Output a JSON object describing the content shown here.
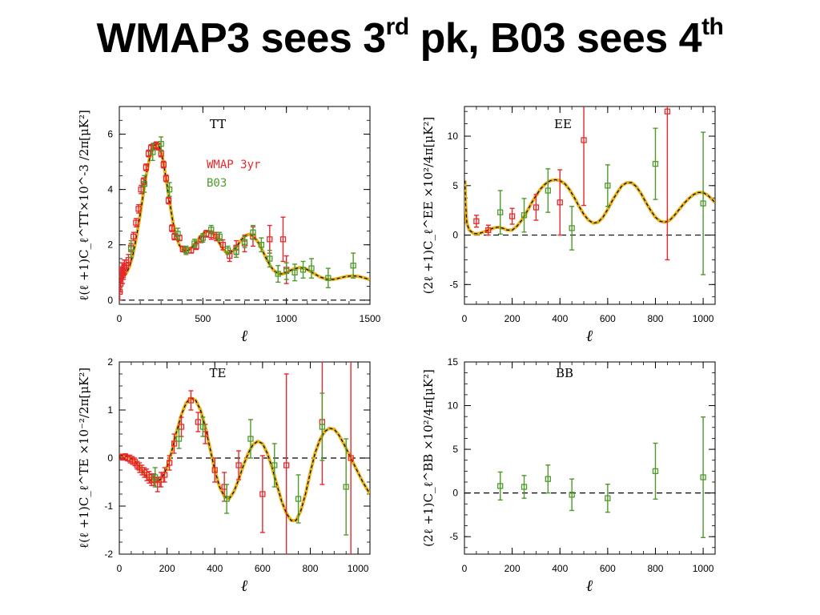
{
  "slide": {
    "title_a": "WMAP3 sees 3",
    "title_sup_a": "rd",
    "title_b": " pk, B03 sees 4",
    "title_sup_b": "th"
  },
  "colors": {
    "wmap": "#e8282b",
    "b03": "#4e9a2a",
    "model_fill": "#e8b21a",
    "model_line": "#000000"
  },
  "chart_data": [
    {
      "id": "tt",
      "type": "scatter",
      "panel_label": "TT",
      "xlabel": "ℓ",
      "ylabel": "ℓ(ℓ +1)C_ℓ^TT×10^-3 /2π[μK²]",
      "xlim": [
        0,
        1500
      ],
      "ylim": [
        -0.15,
        7.0
      ],
      "xticks": [
        0,
        500,
        1000,
        1500
      ],
      "yticks": [
        0,
        2,
        4,
        6
      ],
      "zero_line": true,
      "legend": [
        "WMAP 3yr",
        "B03"
      ],
      "model": {
        "x": [
          2,
          10,
          20,
          40,
          60,
          80,
          100,
          120,
          140,
          160,
          180,
          200,
          220,
          240,
          260,
          280,
          300,
          320,
          340,
          360,
          380,
          400,
          420,
          440,
          460,
          480,
          500,
          520,
          540,
          560,
          580,
          600,
          620,
          640,
          660,
          680,
          700,
          720,
          740,
          760,
          780,
          800,
          820,
          840,
          860,
          880,
          900,
          920,
          940,
          960,
          980,
          1000,
          1040,
          1080,
          1120,
          1160,
          1200,
          1240,
          1280,
          1320,
          1360,
          1400,
          1440,
          1480,
          1500
        ],
        "y": [
          0.9,
          0.85,
          0.85,
          0.95,
          1.2,
          1.6,
          2.2,
          2.9,
          3.7,
          4.5,
          5.1,
          5.5,
          5.65,
          5.55,
          5.1,
          4.4,
          3.6,
          2.85,
          2.3,
          1.98,
          1.82,
          1.78,
          1.82,
          1.95,
          2.1,
          2.25,
          2.4,
          2.48,
          2.48,
          2.4,
          2.25,
          2.05,
          1.85,
          1.72,
          1.7,
          1.78,
          1.92,
          2.1,
          2.25,
          2.35,
          2.38,
          2.32,
          2.18,
          2.0,
          1.75,
          1.5,
          1.28,
          1.1,
          1.0,
          0.95,
          0.95,
          1.0,
          1.12,
          1.18,
          1.12,
          0.98,
          0.84,
          0.76,
          0.75,
          0.8,
          0.86,
          0.88,
          0.85,
          0.78,
          0.74
        ]
      },
      "series": [
        {
          "name": "WMAP 3yr",
          "color": "wmap",
          "points": [
            [
              3,
              0.3,
              0.3
            ],
            [
              5,
              0.8,
              0.35
            ],
            [
              8,
              0.6,
              0.3
            ],
            [
              12,
              0.9,
              0.3
            ],
            [
              16,
              1.05,
              0.3
            ],
            [
              20,
              0.9,
              0.3
            ],
            [
              25,
              1.0,
              0.25
            ],
            [
              30,
              1.2,
              0.25
            ],
            [
              40,
              1.25,
              0.2
            ],
            [
              55,
              1.45,
              0.2
            ],
            [
              70,
              1.9,
              0.15
            ],
            [
              85,
              2.3,
              0.15
            ],
            [
              100,
              2.8,
              0.15
            ],
            [
              115,
              3.3,
              0.15
            ],
            [
              130,
              4.0,
              0.15
            ],
            [
              145,
              4.3,
              0.12
            ],
            [
              160,
              4.8,
              0.12
            ],
            [
              175,
              5.3,
              0.12
            ],
            [
              190,
              5.5,
              0.12
            ],
            [
              205,
              5.55,
              0.12
            ],
            [
              220,
              5.6,
              0.12
            ],
            [
              235,
              5.55,
              0.12
            ],
            [
              250,
              5.3,
              0.12
            ],
            [
              265,
              4.9,
              0.12
            ],
            [
              280,
              4.4,
              0.12
            ],
            [
              295,
              3.6,
              0.12
            ],
            [
              315,
              2.6,
              0.12
            ],
            [
              330,
              2.3,
              0.12
            ],
            [
              360,
              2.25,
              0.1
            ],
            [
              380,
              1.85,
              0.1
            ],
            [
              400,
              1.8,
              0.1
            ],
            [
              430,
              1.8,
              0.1
            ],
            [
              460,
              1.95,
              0.12
            ],
            [
              490,
              2.2,
              0.12
            ],
            [
              520,
              2.4,
              0.12
            ],
            [
              550,
              2.35,
              0.15
            ],
            [
              580,
              2.3,
              0.15
            ],
            [
              620,
              2.0,
              0.18
            ],
            [
              660,
              1.6,
              0.2
            ],
            [
              700,
              1.9,
              0.25
            ],
            [
              750,
              2.05,
              0.3
            ],
            [
              800,
              2.3,
              0.35
            ],
            [
              900,
              2.2,
              0.5
            ],
            [
              980,
              2.2,
              0.8
            ],
            [
              1000,
              1.1,
              0.5
            ]
          ]
        },
        {
          "name": "B03",
          "color": "b03",
          "points": [
            [
              70,
              1.85,
              0.3
            ],
            [
              150,
              4.2,
              0.3
            ],
            [
              200,
              5.35,
              0.3
            ],
            [
              250,
              5.65,
              0.25
            ],
            [
              300,
              4.0,
              0.25
            ],
            [
              350,
              2.4,
              0.2
            ],
            [
              400,
              1.8,
              0.15
            ],
            [
              450,
              2.05,
              0.15
            ],
            [
              500,
              2.25,
              0.15
            ],
            [
              550,
              2.55,
              0.15
            ],
            [
              600,
              2.3,
              0.15
            ],
            [
              650,
              1.8,
              0.15
            ],
            [
              700,
              1.75,
              0.2
            ],
            [
              750,
              2.1,
              0.2
            ],
            [
              800,
              2.45,
              0.25
            ],
            [
              850,
              2.0,
              0.25
            ],
            [
              900,
              1.5,
              0.3
            ],
            [
              950,
              0.95,
              0.3
            ],
            [
              1000,
              1.05,
              0.3
            ],
            [
              1050,
              1.0,
              0.3
            ],
            [
              1100,
              1.1,
              0.3
            ],
            [
              1150,
              1.15,
              0.35
            ],
            [
              1250,
              0.8,
              0.35
            ],
            [
              1400,
              1.25,
              0.45
            ]
          ]
        }
      ]
    },
    {
      "id": "ee",
      "type": "scatter",
      "panel_label": "EE",
      "xlabel": "ℓ",
      "ylabel": "(2ℓ +1)C_ℓ^EE ×10²/4π[μK²]",
      "xlim": [
        0,
        1050
      ],
      "ylim": [
        -7,
        13
      ],
      "xticks": [
        0,
        200,
        400,
        600,
        800,
        1000
      ],
      "yticks": [
        -5,
        0,
        5,
        10
      ],
      "zero_line": true,
      "model": {
        "x": [
          2,
          5,
          10,
          20,
          40,
          60,
          80,
          100,
          120,
          140,
          160,
          180,
          200,
          220,
          240,
          260,
          280,
          300,
          320,
          340,
          360,
          380,
          400,
          420,
          440,
          460,
          480,
          500,
          520,
          540,
          560,
          580,
          600,
          620,
          640,
          660,
          680,
          700,
          720,
          740,
          760,
          780,
          800,
          820,
          840,
          860,
          880,
          900,
          920,
          940,
          960,
          980,
          1000,
          1020,
          1050
        ],
        "y": [
          5.5,
          3.0,
          1.2,
          0.5,
          0.15,
          0.15,
          0.3,
          0.5,
          0.7,
          0.8,
          0.7,
          0.5,
          0.5,
          0.9,
          1.5,
          2.3,
          3.2,
          4.0,
          4.7,
          5.2,
          5.5,
          5.6,
          5.5,
          5.2,
          4.6,
          3.8,
          2.9,
          2.1,
          1.5,
          1.2,
          1.3,
          1.8,
          2.6,
          3.5,
          4.3,
          5.0,
          5.3,
          5.3,
          4.9,
          4.2,
          3.3,
          2.5,
          1.8,
          1.4,
          1.3,
          1.5,
          2.0,
          2.6,
          3.2,
          3.7,
          4.1,
          4.3,
          4.3,
          4.0,
          3.3
        ]
      },
      "series": [
        {
          "name": "WMAP 3yr",
          "color": "wmap",
          "points": [
            [
              50,
              1.4,
              0.6
            ],
            [
              100,
              0.5,
              0.5
            ],
            [
              200,
              1.9,
              0.8
            ],
            [
              300,
              2.8,
              1.3
            ],
            [
              400,
              3.3,
              3.3
            ],
            [
              500,
              9.6,
              6.6
            ],
            [
              850,
              12.5,
              15
            ]
          ]
        },
        {
          "name": "B03",
          "color": "b03",
          "points": [
            [
              150,
              2.3,
              2.2
            ],
            [
              250,
              2.0,
              1.7
            ],
            [
              350,
              4.5,
              2.2
            ],
            [
              450,
              0.7,
              2.2
            ],
            [
              600,
              5.0,
              2.1
            ],
            [
              800,
              7.2,
              3.6
            ],
            [
              1000,
              3.2,
              7.2
            ]
          ]
        }
      ]
    },
    {
      "id": "te",
      "type": "scatter",
      "panel_label": "TE",
      "xlabel": "ℓ",
      "ylabel": "ℓ(ℓ +1)C_ℓ^TE ×10⁻²/2π[μK²]",
      "xlim": [
        0,
        1050
      ],
      "ylim": [
        -2,
        2
      ],
      "xticks": [
        0,
        200,
        400,
        600,
        800,
        1000
      ],
      "yticks": [
        -2,
        -1,
        0,
        1,
        2
      ],
      "zero_line": true,
      "model": {
        "x": [
          2,
          20,
          40,
          60,
          80,
          100,
          120,
          140,
          160,
          180,
          200,
          220,
          240,
          260,
          280,
          300,
          320,
          340,
          360,
          380,
          400,
          420,
          440,
          460,
          480,
          500,
          520,
          540,
          560,
          580,
          600,
          620,
          640,
          660,
          680,
          700,
          720,
          740,
          760,
          780,
          800,
          820,
          840,
          860,
          880,
          900,
          920,
          940,
          960,
          980,
          1000,
          1020,
          1050
        ],
        "y": [
          0.05,
          0.05,
          0.02,
          -0.05,
          -0.15,
          -0.3,
          -0.42,
          -0.5,
          -0.5,
          -0.4,
          -0.2,
          0.15,
          0.55,
          0.9,
          1.15,
          1.25,
          1.2,
          1.0,
          0.65,
          0.2,
          -0.25,
          -0.6,
          -0.8,
          -0.85,
          -0.7,
          -0.45,
          -0.15,
          0.1,
          0.28,
          0.35,
          0.3,
          0.1,
          -0.2,
          -0.55,
          -0.9,
          -1.15,
          -1.3,
          -1.3,
          -1.1,
          -0.75,
          -0.3,
          0.1,
          0.38,
          0.55,
          0.62,
          0.6,
          0.48,
          0.3,
          0.1,
          -0.1,
          -0.3,
          -0.5,
          -0.75
        ]
      },
      "series": [
        {
          "name": "WMAP 3yr",
          "color": "wmap",
          "points": [
            [
              5,
              0.02,
              0.06
            ],
            [
              15,
              0.02,
              0.06
            ],
            [
              25,
              0.03,
              0.06
            ],
            [
              35,
              0.0,
              0.06
            ],
            [
              45,
              -0.02,
              0.08
            ],
            [
              55,
              -0.05,
              0.08
            ],
            [
              65,
              -0.08,
              0.08
            ],
            [
              75,
              -0.15,
              0.08
            ],
            [
              85,
              -0.2,
              0.1
            ],
            [
              95,
              -0.25,
              0.1
            ],
            [
              105,
              -0.3,
              0.1
            ],
            [
              115,
              -0.35,
              0.12
            ],
            [
              125,
              -0.4,
              0.12
            ],
            [
              135,
              -0.45,
              0.12
            ],
            [
              145,
              -0.45,
              0.12
            ],
            [
              160,
              -0.55,
              0.15
            ],
            [
              175,
              -0.45,
              0.15
            ],
            [
              190,
              -0.35,
              0.15
            ],
            [
              210,
              -0.1,
              0.15
            ],
            [
              230,
              0.3,
              0.2
            ],
            [
              260,
              0.65,
              0.2
            ],
            [
              300,
              1.2,
              0.2
            ],
            [
              330,
              0.75,
              0.2
            ],
            [
              360,
              0.5,
              0.2
            ],
            [
              400,
              -0.25,
              0.25
            ],
            [
              440,
              -0.6,
              0.3
            ],
            [
              500,
              -0.15,
              0.3
            ],
            [
              600,
              -0.75,
              0.8
            ],
            [
              700,
              -0.15,
              1.9
            ],
            [
              850,
              0.75,
              1.3
            ],
            [
              970,
              0.0,
              2.5
            ]
          ]
        },
        {
          "name": "B03",
          "color": "b03",
          "points": [
            [
              150,
              -0.4,
              0.2
            ],
            [
              250,
              0.4,
              0.2
            ],
            [
              350,
              0.65,
              0.2
            ],
            [
              450,
              -0.85,
              0.3
            ],
            [
              550,
              0.4,
              0.4
            ],
            [
              650,
              -0.15,
              0.45
            ],
            [
              750,
              -0.85,
              0.5
            ],
            [
              850,
              0.65,
              0.7
            ],
            [
              950,
              -0.6,
              1.0
            ]
          ]
        }
      ]
    },
    {
      "id": "bb",
      "type": "scatter",
      "panel_label": "BB",
      "xlabel": "ℓ",
      "ylabel": "(2ℓ +1)C_ℓ^BB ×10²/4π[μK²]",
      "xlim": [
        0,
        1050
      ],
      "ylim": [
        -7,
        15
      ],
      "xticks": [
        0,
        200,
        400,
        600,
        800,
        1000
      ],
      "yticks": [
        -5,
        0,
        5,
        10,
        15
      ],
      "zero_line": true,
      "series": [
        {
          "name": "B03",
          "color": "b03",
          "points": [
            [
              150,
              0.8,
              1.6
            ],
            [
              250,
              0.7,
              1.3
            ],
            [
              350,
              1.6,
              1.6
            ],
            [
              450,
              -0.2,
              1.8
            ],
            [
              600,
              -0.6,
              1.6
            ],
            [
              800,
              2.5,
              3.2
            ],
            [
              1000,
              1.8,
              6.9
            ]
          ]
        }
      ]
    }
  ]
}
